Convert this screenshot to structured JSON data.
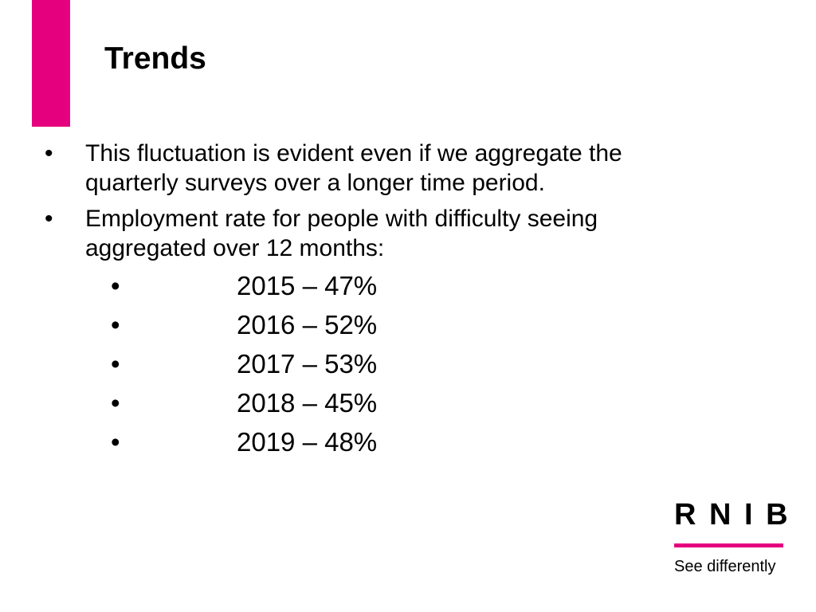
{
  "colors": {
    "accent": "#E5007E",
    "text": "#000000",
    "background": "#FFFFFF"
  },
  "slide": {
    "title": "Trends",
    "bullets": [
      {
        "symbol": "•",
        "text": "This fluctuation is evident even if we aggregate the quarterly surveys over a longer time period."
      },
      {
        "symbol": "•",
        "text": "Employment rate for people with difficulty seeing aggregated over 12 months:"
      }
    ],
    "sub_bullets": [
      {
        "symbol": "•",
        "text": "2015 – 47%"
      },
      {
        "symbol": "•",
        "text": "2016 – 52%"
      },
      {
        "symbol": "•",
        "text": "2017 – 53%"
      },
      {
        "symbol": "•",
        "text": "2018 – 45%"
      },
      {
        "symbol": "•",
        "text": "2019 – 48%"
      }
    ]
  },
  "logo": {
    "text": "R N I B",
    "tagline": "See differently"
  }
}
